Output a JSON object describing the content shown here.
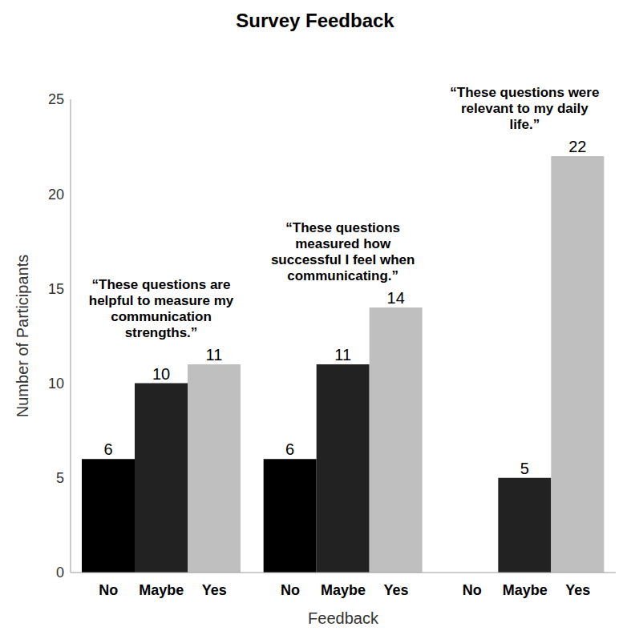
{
  "chart_data": {
    "type": "bar",
    "title": "Survey Feedback",
    "x_label": "Feedback",
    "y_label": "Number of Participants",
    "categories": [
      "“These questions are helpful to measure my communication strengths.”",
      "“These questions measured how successful I feel when communicating.”",
      "“These questions were relevant to my daily life.”"
    ],
    "series": [
      {
        "name": "No",
        "color": "#000000",
        "values": [
          6,
          6,
          0
        ]
      },
      {
        "name": "Maybe",
        "color": "#222222",
        "values": [
          10,
          11,
          5
        ]
      },
      {
        "name": "Yes",
        "color": "#bfbfbf",
        "values": [
          11,
          14,
          22
        ]
      }
    ],
    "ylim": [
      0,
      25
    ],
    "yticks": [
      0,
      5,
      10,
      15,
      20,
      25
    ],
    "grid": false,
    "data_labels": true
  }
}
